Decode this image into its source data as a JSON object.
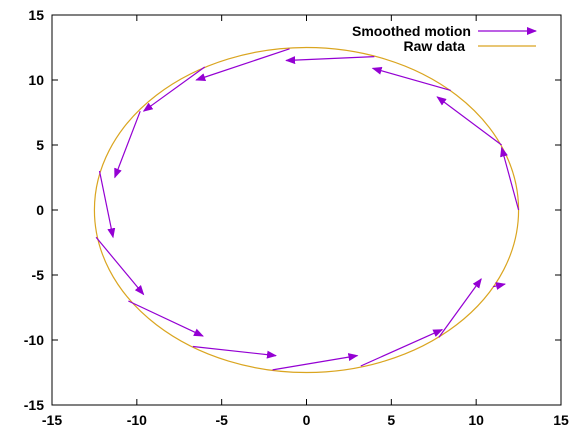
{
  "chart_data": {
    "type": "line",
    "xlim": [
      -15,
      15
    ],
    "ylim": [
      -15,
      15
    ],
    "xticks": [
      -15,
      -10,
      -5,
      0,
      5,
      10,
      15
    ],
    "yticks": [
      -15,
      -10,
      -5,
      0,
      5,
      10,
      15
    ],
    "x_tick_labels": [
      "-15",
      "-10",
      "-5",
      "0",
      "5",
      "10",
      "15"
    ],
    "y_tick_labels": [
      "-15",
      "-10",
      "-5",
      "0",
      "5",
      "10",
      "15"
    ],
    "grid": false,
    "legend_position": "top-right",
    "series": [
      {
        "name": "Smoothed motion",
        "kind": "vector",
        "color": "#9400d3",
        "vectors": [
          {
            "x": 12.5,
            "y": 0.0,
            "dx": -1.0,
            "dy": 4.8
          },
          {
            "x": 11.5,
            "y": 5.0,
            "dx": -3.8,
            "dy": 3.7
          },
          {
            "x": 8.5,
            "y": 9.2,
            "dx": -4.6,
            "dy": 1.7
          },
          {
            "x": 4.0,
            "y": 11.8,
            "dx": -5.2,
            "dy": -0.3
          },
          {
            "x": -1.0,
            "y": 12.4,
            "dx": -5.5,
            "dy": -2.4
          },
          {
            "x": -6.0,
            "y": 11.0,
            "dx": -3.6,
            "dy": -3.4
          },
          {
            "x": -9.8,
            "y": 7.6,
            "dx": -1.5,
            "dy": -5.1
          },
          {
            "x": -12.2,
            "y": 3.0,
            "dx": 0.8,
            "dy": -5.1
          },
          {
            "x": -12.4,
            "y": -2.1,
            "dx": 2.8,
            "dy": -4.4
          },
          {
            "x": -10.5,
            "y": -7.0,
            "dx": 4.4,
            "dy": -2.7
          },
          {
            "x": -6.7,
            "y": -10.5,
            "dx": 4.9,
            "dy": -0.7
          },
          {
            "x": -2.0,
            "y": -12.3,
            "dx": 5.0,
            "dy": 1.1
          },
          {
            "x": 3.2,
            "y": -12.0,
            "dx": 4.8,
            "dy": 2.8
          },
          {
            "x": 7.8,
            "y": -9.8,
            "dx": 2.5,
            "dy": 4.5
          },
          {
            "x": 11.0,
            "y": -5.9,
            "dx": 0.7,
            "dy": 0.2
          }
        ]
      },
      {
        "name": "Raw data",
        "kind": "ellipse",
        "color": "#daa520",
        "center": [
          0,
          0
        ],
        "rx": 12.5,
        "ry": 12.5
      }
    ]
  }
}
